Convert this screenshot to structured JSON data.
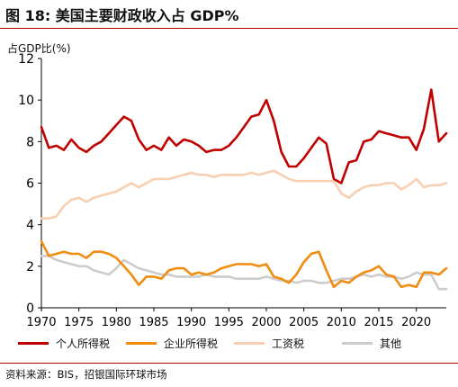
{
  "figure": {
    "title": "图 18: 美国主要财政收入占 GDP%",
    "source": "资料来源：BIS，招银国际环球市场"
  },
  "chart_data": {
    "type": "line",
    "title": "图 18: 美国主要财政收入占 GDP%",
    "xlabel": "",
    "ylabel": "占GDP比(%)",
    "xlim": [
      1970,
      2024
    ],
    "ylim": [
      0,
      12
    ],
    "x_ticks": [
      "1970",
      "1975",
      "1980",
      "1985",
      "1990",
      "1995",
      "2000",
      "2005",
      "2010",
      "2015",
      "2020"
    ],
    "y_ticks": [
      "0",
      "2",
      "4",
      "6",
      "8",
      "10",
      "12"
    ],
    "grid": false,
    "legend": "bottom",
    "x": [
      1970,
      1971,
      1972,
      1973,
      1974,
      1975,
      1976,
      1977,
      1978,
      1979,
      1980,
      1981,
      1982,
      1983,
      1984,
      1985,
      1986,
      1987,
      1988,
      1989,
      1990,
      1991,
      1992,
      1993,
      1994,
      1995,
      1996,
      1997,
      1998,
      1999,
      2000,
      2001,
      2002,
      2003,
      2004,
      2005,
      2006,
      2007,
      2008,
      2009,
      2010,
      2011,
      2012,
      2013,
      2014,
      2015,
      2016,
      2017,
      2018,
      2019,
      2020,
      2021,
      2022,
      2023,
      2024
    ],
    "series": [
      {
        "name": "个人所得税",
        "color": "#c00000",
        "values": [
          8.7,
          7.7,
          7.8,
          7.6,
          8.1,
          7.7,
          7.5,
          7.8,
          8.0,
          8.4,
          8.8,
          9.2,
          9.0,
          8.1,
          7.6,
          7.8,
          7.6,
          8.2,
          7.8,
          8.1,
          8.0,
          7.8,
          7.5,
          7.6,
          7.6,
          7.8,
          8.2,
          8.7,
          9.2,
          9.3,
          10.0,
          9.0,
          7.5,
          6.8,
          6.8,
          7.2,
          7.7,
          8.2,
          7.9,
          6.2,
          6.0,
          7.0,
          7.1,
          8.0,
          8.1,
          8.5,
          8.4,
          8.3,
          8.2,
          8.2,
          7.6,
          8.6,
          10.5,
          8.0,
          8.4
        ]
      },
      {
        "name": "企业所得税",
        "color": "#f08c10",
        "values": [
          3.2,
          2.5,
          2.6,
          2.7,
          2.6,
          2.6,
          2.4,
          2.7,
          2.7,
          2.6,
          2.4,
          2.0,
          1.6,
          1.1,
          1.5,
          1.5,
          1.4,
          1.8,
          1.9,
          1.9,
          1.6,
          1.7,
          1.6,
          1.7,
          1.9,
          2.0,
          2.1,
          2.1,
          2.1,
          2.0,
          2.1,
          1.5,
          1.4,
          1.2,
          1.6,
          2.2,
          2.6,
          2.7,
          1.8,
          1.0,
          1.3,
          1.2,
          1.5,
          1.7,
          1.8,
          2.0,
          1.6,
          1.5,
          1.0,
          1.1,
          1.0,
          1.7,
          1.7,
          1.6,
          1.9
        ]
      },
      {
        "name": "工资税",
        "color": "#f8cfb0",
        "values": [
          4.3,
          4.3,
          4.4,
          4.9,
          5.2,
          5.3,
          5.1,
          5.3,
          5.4,
          5.5,
          5.6,
          5.8,
          6.0,
          5.8,
          6.0,
          6.2,
          6.2,
          6.2,
          6.3,
          6.4,
          6.5,
          6.4,
          6.4,
          6.3,
          6.4,
          6.4,
          6.4,
          6.4,
          6.5,
          6.4,
          6.5,
          6.6,
          6.4,
          6.2,
          6.1,
          6.1,
          6.1,
          6.1,
          6.1,
          6.1,
          5.5,
          5.3,
          5.6,
          5.8,
          5.9,
          5.9,
          6.0,
          6.0,
          5.7,
          5.9,
          6.2,
          5.8,
          5.9,
          5.9,
          6.0
        ]
      },
      {
        "name": "其他",
        "color": "#cccccc",
        "values": [
          2.5,
          2.5,
          2.3,
          2.2,
          2.1,
          2.0,
          2.0,
          1.8,
          1.7,
          1.6,
          1.9,
          2.3,
          2.1,
          1.9,
          1.8,
          1.7,
          1.6,
          1.6,
          1.5,
          1.5,
          1.5,
          1.5,
          1.6,
          1.5,
          1.5,
          1.5,
          1.4,
          1.4,
          1.4,
          1.4,
          1.5,
          1.4,
          1.3,
          1.3,
          1.2,
          1.3,
          1.3,
          1.2,
          1.2,
          1.3,
          1.4,
          1.4,
          1.5,
          1.6,
          1.5,
          1.6,
          1.5,
          1.5,
          1.4,
          1.5,
          1.7,
          1.6,
          1.6,
          0.9,
          0.9
        ]
      }
    ]
  }
}
